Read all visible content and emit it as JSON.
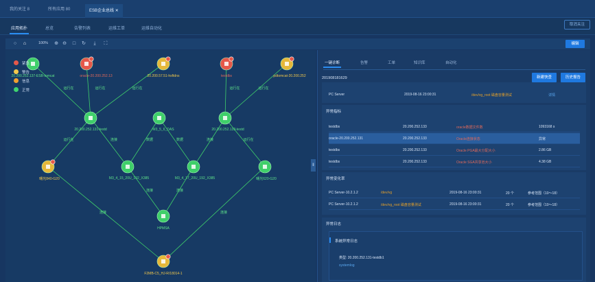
{
  "top_tabs": [
    "我的关注 8",
    "所有应用 80",
    "ESB企业总线"
  ],
  "cancel_follow": "取消关注",
  "sub_tabs": [
    "应用拓扑",
    "总览",
    "告警列表",
    "运维工单",
    "运维自动化"
  ],
  "zoom": "100%",
  "edit": "编辑",
  "legend": [
    {
      "label": "紧急",
      "color": "#e5584a"
    },
    {
      "label": "警告",
      "color": "#f2c84b"
    },
    {
      "label": "信息",
      "color": "#f0a030"
    },
    {
      "label": "正常",
      "color": "#3fd370"
    }
  ],
  "nodes": [
    {
      "label": "20.200.252.137-ESB-tomcat",
      "color": "green"
    },
    {
      "label": "oracle-20.200.252.13",
      "color": "red"
    },
    {
      "label": "20.200.57.51-hsftdns",
      "color": "yellow"
    },
    {
      "label": "testdbs",
      "color": "red"
    },
    {
      "label": "pdtomcat-20.200.252",
      "color": "yellow"
    },
    {
      "label": "20.200.252.131-testd",
      "color": "green"
    },
    {
      "label": "M3_5_6_DAS",
      "color": "green"
    },
    {
      "label": "20.200.252.133-testd",
      "color": "green"
    },
    {
      "label": "曙光840-G20",
      "color": "yellow"
    },
    {
      "label": "M3_4_15_20U_192_X385",
      "color": "green"
    },
    {
      "label": "M3_4_17_20U_192_X385",
      "color": "green"
    },
    {
      "label": "曙光620-G20",
      "color": "green"
    },
    {
      "label": "HPMSA",
      "color": "green"
    },
    {
      "label": "F2MB-C5_HJ-R/18014-1",
      "color": "yellow"
    }
  ],
  "edge_labels": {
    "runs_on": "运行在",
    "connect": "连接",
    "storage": "数据",
    "link": "连接"
  },
  "panel": {
    "tabs": [
      "一键诊断",
      "告警",
      "工单",
      "知识库",
      "自动化"
    ],
    "id": "201908181629",
    "new_event": "新建快查",
    "history": "历史报告",
    "top_row": {
      "name": "PC Server",
      "time": "2019-08-16 23:00:31",
      "desc": "/dev/vg_root 磁盘容量测试",
      "action": "详情"
    },
    "section1": "异常指标",
    "metrics": [
      {
        "name": "testdbs",
        "ip": "20.200.252.133",
        "metric": "oracle数据文件数",
        "value": "1093168 s"
      },
      {
        "name": "oracle-20.200.252.131",
        "ip": "20.200.252.133",
        "metric": "Oracle连接状态",
        "value": "异常"
      },
      {
        "name": "testdbs",
        "ip": "20.200.252.133",
        "metric": "Oracle PGA最大分配大小",
        "value": "2.86 GB"
      },
      {
        "name": "testdbs",
        "ip": "20.200.252.133",
        "metric": "Oracle SGA共享池大小",
        "value": "4.38 GB"
      }
    ],
    "section2": "异常变化率",
    "changes": [
      {
        "name": "PC Server-10.2.1.2",
        "item": "/dev/vg",
        "time": "2019-08-16 23:00:31",
        "count": "20 个",
        "range": "参考范围（10～18）"
      },
      {
        "name": "PC Server-10.2.1.2",
        "item": "/dev/vg_root 磁盘容量测试",
        "time": "2019-08-16 23:00:31",
        "count": "20 个",
        "range": "参考范围（10～18）"
      }
    ],
    "section3": "异常日志",
    "log_title": "系统异常日志",
    "log_type": "类型: 20.200.252.131-testdb1",
    "log_value": "systemlog"
  }
}
